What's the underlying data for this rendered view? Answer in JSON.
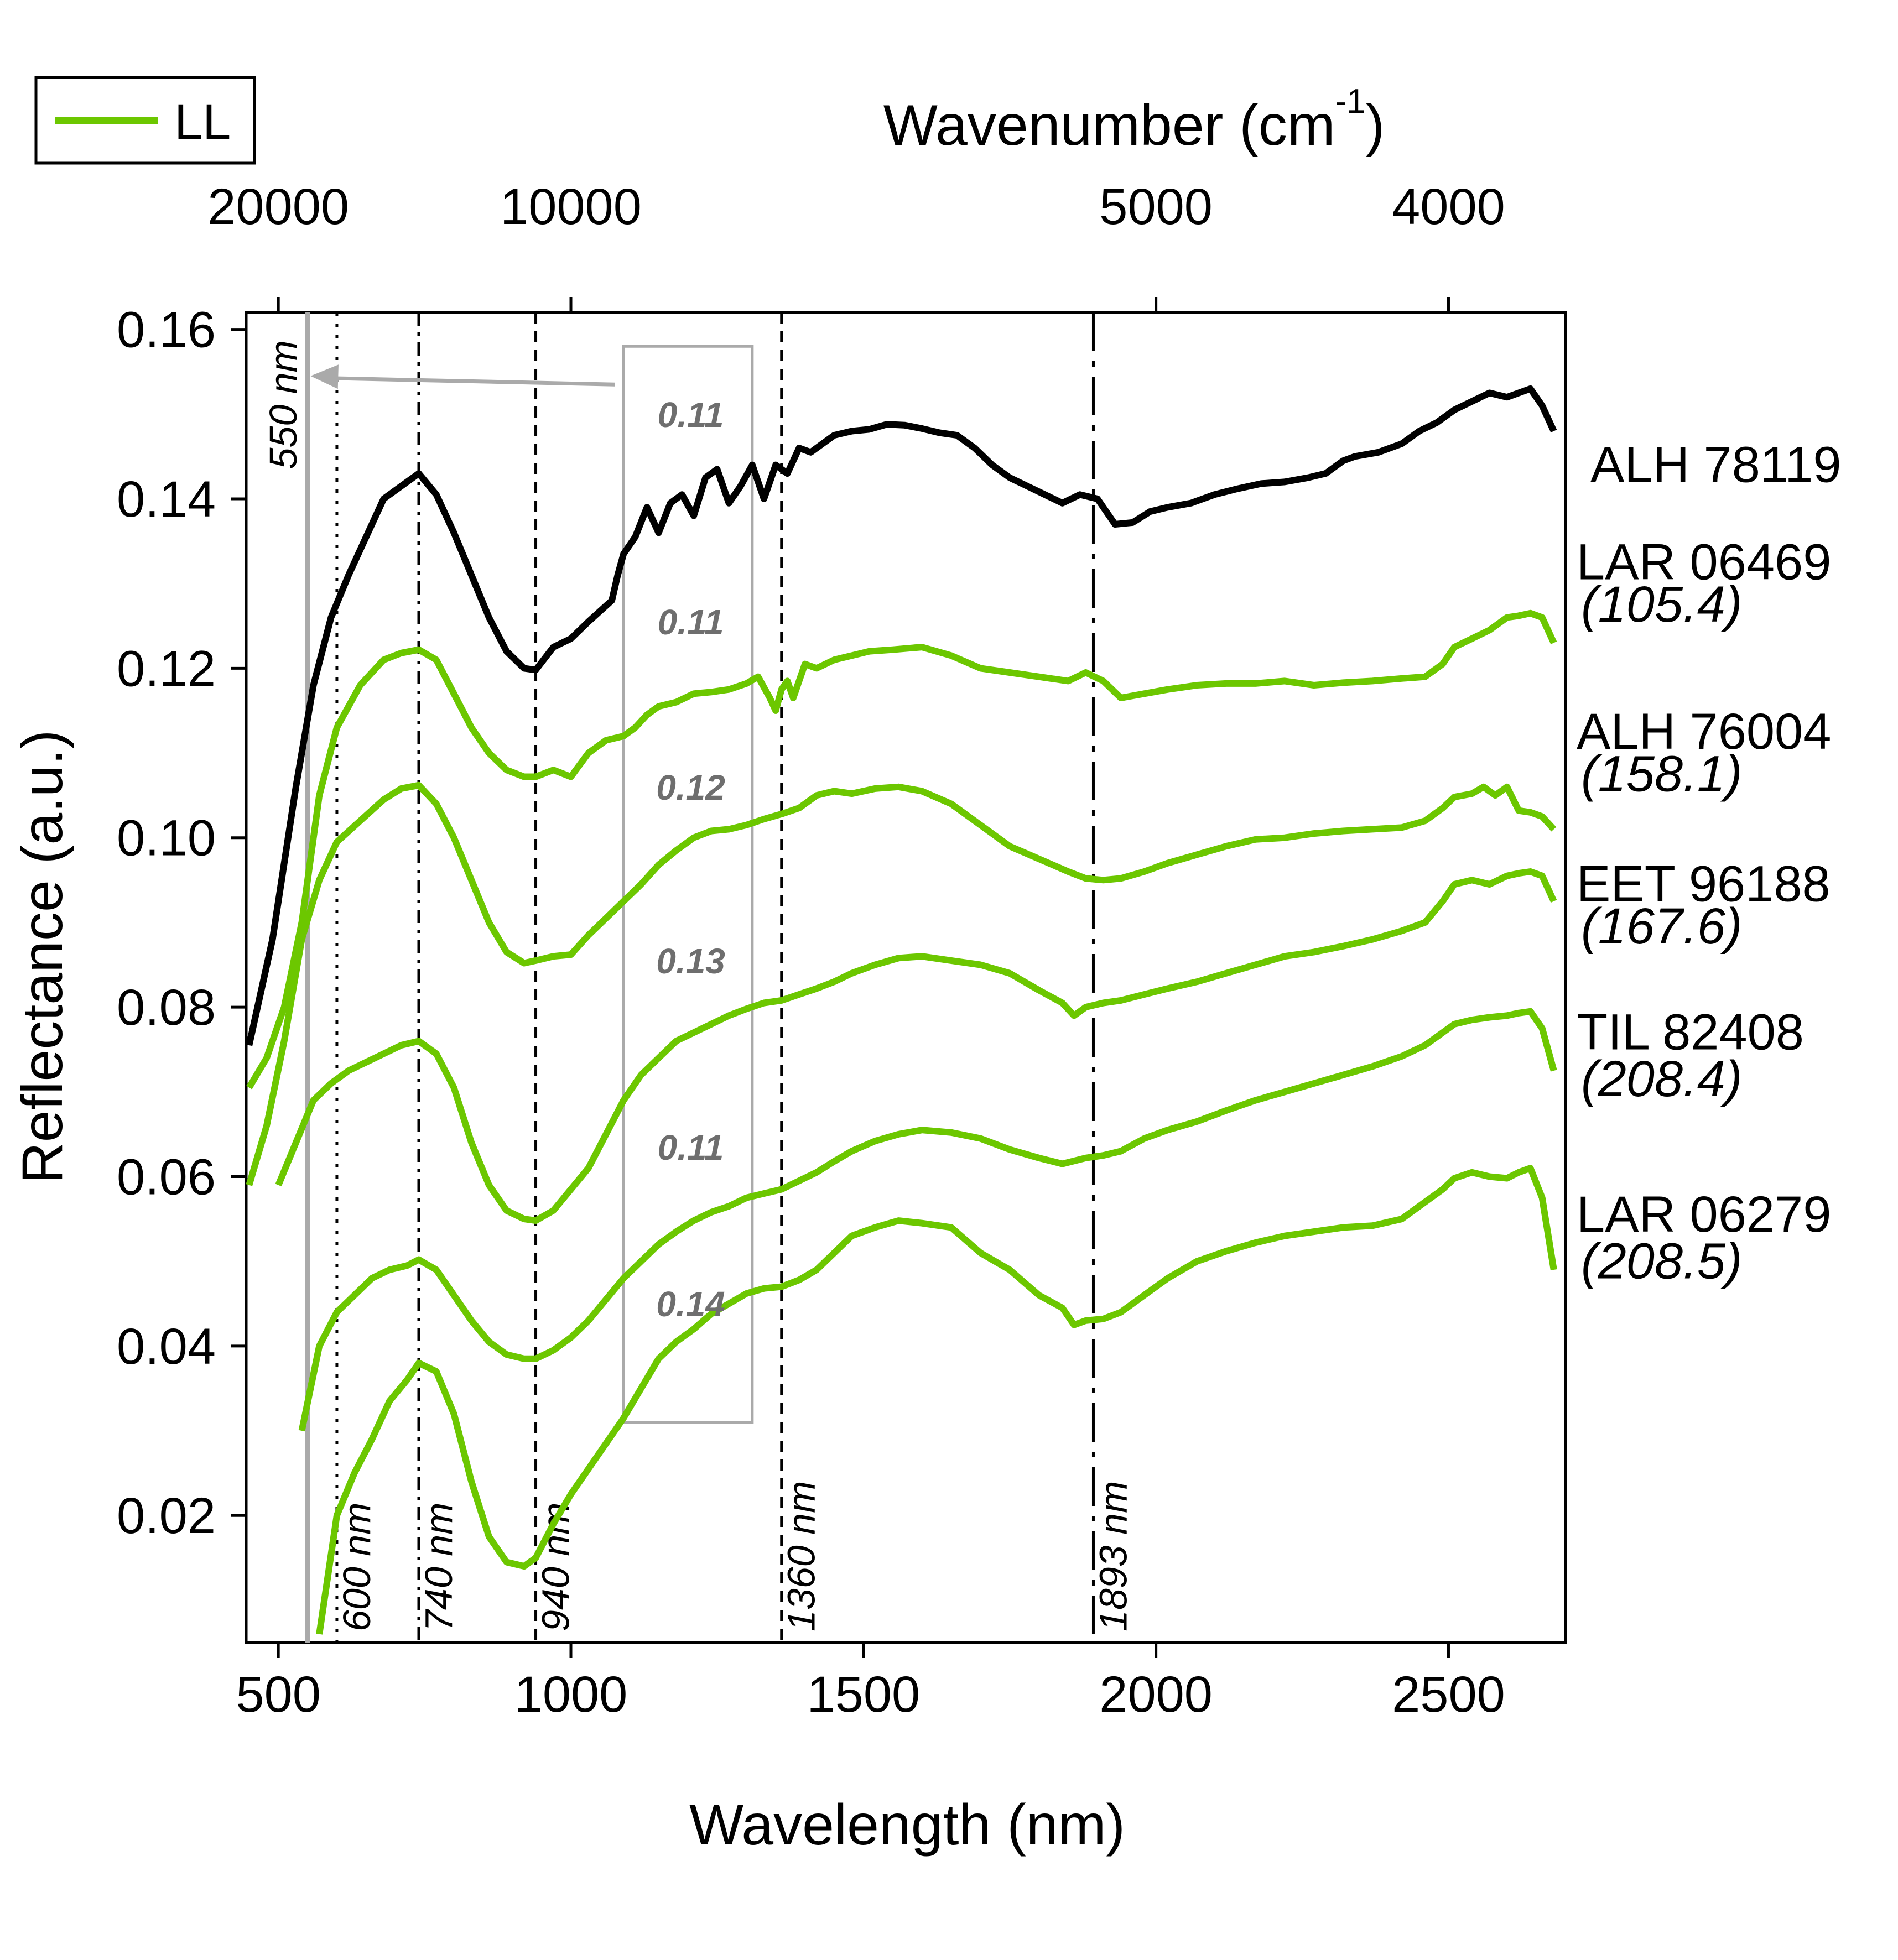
{
  "chart_data": {
    "type": "line",
    "title": "",
    "xlabel": "Wavelength (nm)",
    "ylabel": "Reflectance (a.u.)",
    "top_axis": {
      "label_main": "Wavenumber (cm",
      "label_sup": "-1",
      "label_close": ")",
      "ticks": [
        {
          "value": 20000,
          "label": "20000"
        },
        {
          "value": 10000,
          "label": "10000"
        },
        {
          "value": 5000,
          "label": "5000"
        },
        {
          "value": 4000,
          "label": "4000"
        }
      ]
    },
    "xlim": [
      445,
      2700
    ],
    "ylim": [
      0.005,
      0.162
    ],
    "x_ticks": [
      500,
      1000,
      1500,
      2000,
      2500
    ],
    "x_tick_labels": [
      "500",
      "1000",
      "1500",
      "2000",
      "2500"
    ],
    "y_ticks": [
      0.02,
      0.04,
      0.06,
      0.08,
      0.1,
      0.12,
      0.14,
      0.16
    ],
    "y_tick_labels": [
      "0.02",
      "0.04",
      "0.06",
      "0.08",
      "0.10",
      "0.12",
      "0.14",
      "0.16"
    ],
    "legend": {
      "position": "top-left",
      "entries": [
        {
          "label": "LL",
          "color": "#6cc700"
        }
      ]
    },
    "colors": {
      "LL": "#6cc700",
      "reference": "#000000",
      "guide_gray": "#aaaaaa",
      "box_text": "#6e6e6e"
    },
    "guides": [
      {
        "x": 550,
        "label": "550 nm",
        "style": "solid-gray"
      },
      {
        "x": 600,
        "label": "600 nm",
        "style": "dotted"
      },
      {
        "x": 740,
        "label": "740 nm",
        "style": "dash-dot"
      },
      {
        "x": 940,
        "label": "940 nm",
        "style": "dashed"
      },
      {
        "x": 1360,
        "label": "1360 nm",
        "style": "dashed"
      },
      {
        "x": 1893,
        "label": "1893 nm",
        "style": "long-dash"
      }
    ],
    "highlight_box": {
      "x_range": [
        1090,
        1310
      ],
      "y_range": [
        0.031,
        0.158
      ],
      "arrow_from": [
        1075,
        0.1535
      ],
      "arrow_to": [
        555,
        0.1545
      ]
    },
    "series": [
      {
        "name": "ALH 78119",
        "value": "",
        "color": "#000000",
        "box_value": "0.11",
        "x": [
          450,
          490,
          530,
          560,
          590,
          620,
          650,
          680,
          710,
          740,
          770,
          800,
          830,
          860,
          890,
          920,
          940,
          970,
          1000,
          1030,
          1070,
          1080,
          1090,
          1110,
          1130,
          1150,
          1170,
          1190,
          1210,
          1230,
          1250,
          1270,
          1290,
          1310,
          1330,
          1350,
          1370,
          1390,
          1410,
          1430,
          1450,
          1480,
          1510,
          1540,
          1570,
          1600,
          1630,
          1660,
          1690,
          1720,
          1750,
          1780,
          1810,
          1840,
          1870,
          1900,
          1930,
          1960,
          1990,
          2020,
          2060,
          2100,
          2140,
          2180,
          2220,
          2260,
          2290,
          2320,
          2340,
          2380,
          2420,
          2450,
          2480,
          2510,
          2540,
          2570,
          2600,
          2620,
          2640,
          2660,
          2680
        ],
        "y": [
          0.0755,
          0.088,
          0.106,
          0.118,
          0.126,
          0.131,
          0.1355,
          0.14,
          0.1415,
          0.143,
          0.1405,
          0.136,
          0.131,
          0.126,
          0.122,
          0.12,
          0.1198,
          0.1225,
          0.1235,
          0.1255,
          0.128,
          0.131,
          0.1335,
          0.1355,
          0.139,
          0.136,
          0.1395,
          0.1405,
          0.138,
          0.1425,
          0.1435,
          0.1395,
          0.1415,
          0.144,
          0.14,
          0.144,
          0.143,
          0.146,
          0.1455,
          0.1465,
          0.1475,
          0.148,
          0.1482,
          0.1488,
          0.1487,
          0.1483,
          0.1478,
          0.1475,
          0.146,
          0.144,
          0.1425,
          0.1415,
          0.1405,
          0.1395,
          0.1405,
          0.14,
          0.137,
          0.1372,
          0.1385,
          0.139,
          0.1395,
          0.1405,
          0.1412,
          0.1418,
          0.142,
          0.1425,
          0.143,
          0.1445,
          0.145,
          0.1455,
          0.1465,
          0.148,
          0.149,
          0.1505,
          0.1515,
          0.1525,
          0.152,
          0.1525,
          0.153,
          0.151,
          0.148
        ]
      },
      {
        "name": "LAR 06469",
        "value": "(105.4)",
        "color": "#6cc700",
        "box_value": "0.11",
        "x": [
          450,
          480,
          510,
          540,
          570,
          600,
          640,
          680,
          710,
          740,
          770,
          800,
          830,
          860,
          890,
          920,
          940,
          970,
          1000,
          1030,
          1060,
          1090,
          1110,
          1130,
          1150,
          1180,
          1210,
          1240,
          1270,
          1300,
          1320,
          1340,
          1350,
          1360,
          1370,
          1380,
          1400,
          1420,
          1450,
          1480,
          1510,
          1550,
          1600,
          1650,
          1700,
          1750,
          1800,
          1850,
          1880,
          1910,
          1940,
          1980,
          2020,
          2070,
          2120,
          2170,
          2220,
          2270,
          2320,
          2370,
          2420,
          2460,
          2490,
          2510,
          2540,
          2570,
          2600,
          2620,
          2640,
          2660,
          2680
        ],
        "y": [
          0.0705,
          0.074,
          0.08,
          0.09,
          0.105,
          0.113,
          0.118,
          0.121,
          0.1218,
          0.1222,
          0.121,
          0.117,
          0.113,
          0.11,
          0.108,
          0.1072,
          0.1072,
          0.108,
          0.1072,
          0.11,
          0.1115,
          0.112,
          0.113,
          0.1145,
          0.1155,
          0.116,
          0.117,
          0.1172,
          0.1175,
          0.1182,
          0.119,
          0.1165,
          0.115,
          0.1175,
          0.1185,
          0.1165,
          0.1205,
          0.12,
          0.121,
          0.1215,
          0.122,
          0.1222,
          0.1225,
          0.1215,
          0.12,
          0.1195,
          0.119,
          0.1185,
          0.1195,
          0.1185,
          0.1165,
          0.117,
          0.1175,
          0.118,
          0.1182,
          0.1182,
          0.1185,
          0.118,
          0.1183,
          0.1185,
          0.1188,
          0.119,
          0.1205,
          0.1225,
          0.1235,
          0.1245,
          0.126,
          0.1262,
          0.1265,
          0.126,
          0.123
        ]
      },
      {
        "name": "ALH 76004",
        "value": "(158.1)",
        "color": "#6cc700",
        "box_value": "0.12",
        "x": [
          450,
          480,
          510,
          540,
          570,
          600,
          640,
          680,
          710,
          740,
          770,
          800,
          830,
          860,
          890,
          920,
          940,
          970,
          1000,
          1030,
          1060,
          1090,
          1120,
          1150,
          1180,
          1210,
          1240,
          1270,
          1300,
          1330,
          1360,
          1390,
          1420,
          1450,
          1480,
          1520,
          1560,
          1600,
          1650,
          1700,
          1750,
          1800,
          1850,
          1880,
          1910,
          1940,
          1980,
          2020,
          2070,
          2120,
          2170,
          2220,
          2270,
          2320,
          2370,
          2420,
          2460,
          2490,
          2510,
          2540,
          2560,
          2580,
          2600,
          2620,
          2640,
          2660,
          2680
        ],
        "y": [
          0.059,
          0.066,
          0.076,
          0.088,
          0.095,
          0.0995,
          0.102,
          0.1045,
          0.1058,
          0.1062,
          0.104,
          0.1,
          0.095,
          0.09,
          0.0865,
          0.0852,
          0.0855,
          0.086,
          0.0862,
          0.0885,
          0.0905,
          0.0925,
          0.0945,
          0.0968,
          0.0985,
          0.1,
          0.1008,
          0.101,
          0.1015,
          0.1022,
          0.1028,
          0.1035,
          0.105,
          0.1055,
          0.1052,
          0.1058,
          0.106,
          0.1055,
          0.104,
          0.1015,
          0.099,
          0.0975,
          0.096,
          0.0952,
          0.095,
          0.0952,
          0.096,
          0.097,
          0.098,
          0.099,
          0.0998,
          0.1,
          0.1005,
          0.1008,
          0.101,
          0.1012,
          0.102,
          0.1035,
          0.1048,
          0.1052,
          0.106,
          0.105,
          0.106,
          0.1032,
          0.103,
          0.1025,
          0.101
        ]
      },
      {
        "name": "EET 96188",
        "value": "(167.6)",
        "color": "#6cc700",
        "box_value": "0.13",
        "x": [
          500,
          530,
          560,
          590,
          620,
          650,
          680,
          710,
          740,
          770,
          800,
          830,
          860,
          890,
          920,
          940,
          970,
          1000,
          1030,
          1060,
          1090,
          1120,
          1150,
          1180,
          1210,
          1240,
          1270,
          1300,
          1330,
          1360,
          1390,
          1420,
          1450,
          1480,
          1520,
          1560,
          1600,
          1650,
          1700,
          1750,
          1800,
          1840,
          1860,
          1880,
          1910,
          1940,
          1980,
          2020,
          2070,
          2120,
          2170,
          2220,
          2270,
          2320,
          2370,
          2420,
          2460,
          2490,
          2510,
          2540,
          2570,
          2600,
          2620,
          2640,
          2660,
          2680
        ],
        "y": [
          0.059,
          0.064,
          0.069,
          0.071,
          0.0725,
          0.0735,
          0.0745,
          0.0755,
          0.076,
          0.0745,
          0.0705,
          0.064,
          0.059,
          0.056,
          0.055,
          0.0548,
          0.056,
          0.0585,
          0.061,
          0.065,
          0.069,
          0.072,
          0.074,
          0.076,
          0.077,
          0.078,
          0.079,
          0.0798,
          0.0805,
          0.0808,
          0.0815,
          0.0822,
          0.083,
          0.084,
          0.085,
          0.0858,
          0.086,
          0.0855,
          0.085,
          0.084,
          0.082,
          0.0805,
          0.079,
          0.08,
          0.0805,
          0.0808,
          0.0815,
          0.0822,
          0.083,
          0.084,
          0.085,
          0.086,
          0.0865,
          0.0872,
          0.088,
          0.089,
          0.09,
          0.0925,
          0.0945,
          0.095,
          0.0945,
          0.0955,
          0.0958,
          0.096,
          0.0955,
          0.0925
        ]
      },
      {
        "name": "TIL 82408",
        "value": "(208.4)",
        "color": "#6cc700",
        "box_value": "0.11",
        "x": [
          540,
          570,
          600,
          630,
          660,
          690,
          720,
          740,
          770,
          800,
          830,
          860,
          890,
          920,
          940,
          970,
          1000,
          1030,
          1060,
          1090,
          1120,
          1150,
          1180,
          1210,
          1240,
          1270,
          1300,
          1330,
          1360,
          1390,
          1420,
          1450,
          1480,
          1520,
          1560,
          1600,
          1650,
          1700,
          1750,
          1800,
          1840,
          1880,
          1910,
          1940,
          1980,
          2020,
          2070,
          2120,
          2170,
          2220,
          2270,
          2320,
          2370,
          2420,
          2460,
          2490,
          2510,
          2540,
          2570,
          2600,
          2620,
          2640,
          2660,
          2680
        ],
        "y": [
          0.03,
          0.04,
          0.044,
          0.046,
          0.048,
          0.049,
          0.0495,
          0.0502,
          0.049,
          0.046,
          0.043,
          0.0405,
          0.039,
          0.0385,
          0.0385,
          0.0395,
          0.041,
          0.043,
          0.0455,
          0.048,
          0.05,
          0.052,
          0.0535,
          0.0548,
          0.0558,
          0.0565,
          0.0575,
          0.058,
          0.0585,
          0.0595,
          0.0605,
          0.0618,
          0.063,
          0.0642,
          0.065,
          0.0655,
          0.0652,
          0.0645,
          0.0632,
          0.0622,
          0.0615,
          0.0622,
          0.0625,
          0.063,
          0.0645,
          0.0655,
          0.0665,
          0.0678,
          0.069,
          0.07,
          0.071,
          0.072,
          0.073,
          0.0742,
          0.0755,
          0.077,
          0.078,
          0.0785,
          0.0788,
          0.079,
          0.0793,
          0.0795,
          0.0775,
          0.0725
        ]
      },
      {
        "name": "LAR 06279",
        "value": "(208.5)",
        "color": "#6cc700",
        "box_value": "0.14",
        "x": [
          570,
          600,
          630,
          660,
          690,
          720,
          740,
          770,
          800,
          830,
          860,
          890,
          920,
          940,
          970,
          1000,
          1030,
          1060,
          1090,
          1120,
          1150,
          1180,
          1210,
          1240,
          1270,
          1300,
          1330,
          1360,
          1390,
          1420,
          1450,
          1480,
          1520,
          1560,
          1600,
          1650,
          1700,
          1750,
          1800,
          1840,
          1860,
          1880,
          1910,
          1940,
          1980,
          2020,
          2070,
          2120,
          2170,
          2220,
          2270,
          2320,
          2370,
          2420,
          2460,
          2490,
          2510,
          2540,
          2570,
          2600,
          2620,
          2640,
          2660,
          2680
        ],
        "y": [
          0.006,
          0.02,
          0.025,
          0.029,
          0.0335,
          0.036,
          0.038,
          0.037,
          0.032,
          0.024,
          0.0175,
          0.0145,
          0.014,
          0.015,
          0.019,
          0.0225,
          0.0255,
          0.0285,
          0.0315,
          0.035,
          0.0385,
          0.0405,
          0.042,
          0.0438,
          0.045,
          0.0462,
          0.0468,
          0.047,
          0.0478,
          0.049,
          0.051,
          0.053,
          0.054,
          0.0548,
          0.0545,
          0.054,
          0.051,
          0.049,
          0.046,
          0.0445,
          0.0425,
          0.043,
          0.0432,
          0.044,
          0.046,
          0.048,
          0.05,
          0.0512,
          0.0522,
          0.053,
          0.0535,
          0.054,
          0.0542,
          0.055,
          0.057,
          0.0585,
          0.0598,
          0.0605,
          0.06,
          0.0598,
          0.0605,
          0.061,
          0.0575,
          0.049
        ]
      }
    ]
  }
}
